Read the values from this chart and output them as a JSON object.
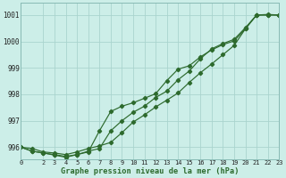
{
  "xlabel": "Graphe pression niveau de la mer (hPa)",
  "background_color": "#cceee8",
  "grid_color": "#aad4ce",
  "line_color": "#2d6a2d",
  "xlim": [
    0,
    23
  ],
  "ylim": [
    995.55,
    1001.45
  ],
  "yticks": [
    996,
    997,
    998,
    999,
    1000,
    1001
  ],
  "x_ticks": [
    0,
    2,
    3,
    4,
    5,
    6,
    7,
    8,
    9,
    10,
    11,
    12,
    13,
    14,
    15,
    16,
    17,
    18,
    19,
    20,
    21,
    22,
    23
  ],
  "line1": [
    996.0,
    995.95,
    995.82,
    995.78,
    995.72,
    995.82,
    995.95,
    996.05,
    996.18,
    996.55,
    996.95,
    997.22,
    997.52,
    997.78,
    998.05,
    998.45,
    998.82,
    999.15,
    999.5,
    999.85,
    1000.48,
    1001.0,
    1001.02,
    1001.0
  ],
  "line2": [
    996.0,
    995.85,
    995.78,
    995.72,
    995.65,
    995.72,
    995.85,
    995.95,
    996.62,
    997.0,
    997.32,
    997.55,
    997.88,
    998.12,
    998.55,
    998.88,
    999.35,
    999.72,
    999.92,
    1000.08,
    1000.52,
    1001.0,
    1001.0,
    1001.0
  ],
  "line3": [
    996.0,
    995.85,
    995.78,
    995.7,
    995.62,
    995.72,
    995.82,
    996.62,
    997.35,
    997.55,
    997.68,
    997.85,
    998.02,
    998.52,
    998.95,
    999.08,
    999.42,
    999.68,
    999.88,
    1000.02,
    1000.48,
    1001.0,
    1001.0,
    1001.0
  ]
}
